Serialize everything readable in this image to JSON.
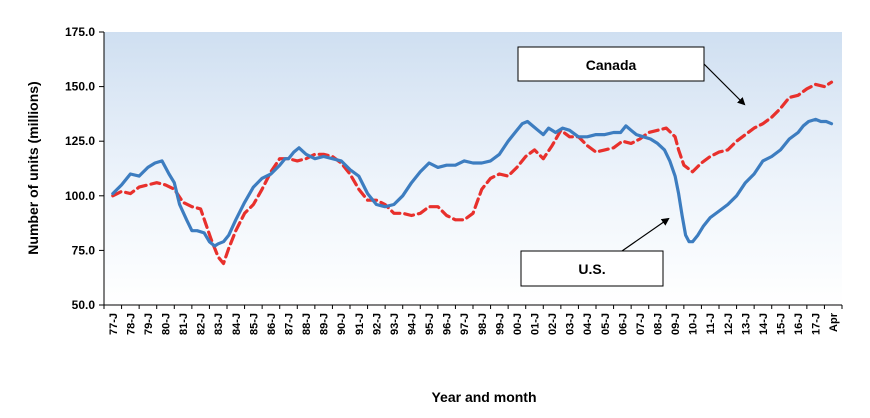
{
  "chart_data": {
    "type": "line",
    "title": "",
    "xlabel": "Year and month",
    "ylabel": "Number of units (millions)",
    "ylim": [
      50,
      175
    ],
    "yticks": [
      "50.0",
      "75.0",
      "100.0",
      "125.0",
      "150.0",
      "175.0"
    ],
    "categories": [
      "77-J",
      "78-J",
      "79-J",
      "80-J",
      "81-J",
      "82-J",
      "83-J",
      "84-J",
      "85-J",
      "86-J",
      "87-J",
      "88-J",
      "89-J",
      "90-J",
      "91-J",
      "92-J",
      "93-J",
      "94-J",
      "95-J",
      "96-J",
      "97-J",
      "98-J",
      "99-J",
      "00-J",
      "01-J",
      "02-J",
      "03-J",
      "04-J",
      "05-J",
      "06-J",
      "07-J",
      "08-J",
      "09-J",
      "10-J",
      "11-J",
      "12-J",
      "13-J",
      "14-J",
      "15-J",
      "16-J",
      "17-J",
      "Apr"
    ],
    "grid": false,
    "series": [
      {
        "name": "U.S.",
        "color": "#3d7dc0",
        "x": [
          1977.0,
          1977.5,
          1978.0,
          1978.5,
          1979.0,
          1979.4,
          1979.8,
          1980.2,
          1980.5,
          1980.8,
          1981.2,
          1981.5,
          1981.8,
          1982.2,
          1982.5,
          1982.8,
          1983.0,
          1983.3,
          1983.6,
          1984.0,
          1984.5,
          1985.0,
          1985.5,
          1986.0,
          1986.5,
          1986.8,
          1987.0,
          1987.3,
          1987.6,
          1988.0,
          1988.5,
          1989.0,
          1989.5,
          1990.0,
          1990.5,
          1991.0,
          1991.5,
          1992.0,
          1992.5,
          1993.0,
          1993.5,
          1994.0,
          1994.5,
          1995.0,
          1995.5,
          1996.0,
          1996.5,
          1997.0,
          1997.5,
          1998.0,
          1998.5,
          1999.0,
          1999.5,
          2000.0,
          2000.3,
          2000.6,
          2000.9,
          2001.2,
          2001.5,
          2001.8,
          2002.2,
          2002.6,
          2003.0,
          2003.5,
          2004.0,
          2004.5,
          2005.0,
          2005.5,
          2005.9,
          2006.2,
          2006.5,
          2006.8,
          2007.2,
          2007.6,
          2008.0,
          2008.4,
          2008.7,
          2009.0,
          2009.2,
          2009.4,
          2009.6,
          2009.8,
          2010.0,
          2010.3,
          2010.6,
          2011.0,
          2011.5,
          2012.0,
          2012.5,
          2013.0,
          2013.5,
          2014.0,
          2014.5,
          2015.0,
          2015.5,
          2016.0,
          2016.3,
          2016.6,
          2017.0,
          2017.3,
          2017.6,
          2017.9
        ],
        "values": [
          101,
          105,
          110,
          109,
          113,
          115,
          116,
          110,
          106,
          96,
          89,
          84,
          84,
          83,
          79,
          77,
          78,
          79,
          82,
          89,
          97,
          104,
          108,
          110,
          114,
          117,
          117,
          120,
          122,
          119,
          117,
          118,
          117,
          116,
          112,
          109,
          101,
          96,
          95,
          96,
          100,
          106,
          111,
          115,
          113,
          114,
          114,
          116,
          115,
          115,
          116,
          119,
          125,
          130,
          133,
          134,
          132,
          130,
          128,
          131,
          129,
          131,
          130,
          127,
          127,
          128,
          128,
          129,
          129,
          132,
          130,
          128,
          127,
          126,
          124,
          121,
          116,
          109,
          101,
          91,
          82,
          79,
          79,
          82,
          86,
          90,
          93,
          96,
          100,
          106,
          110,
          116,
          118,
          121,
          126,
          129,
          132,
          134,
          135,
          134,
          134,
          133
        ]
      },
      {
        "name": "Canada",
        "color": "#e8302c",
        "x": [
          1977.0,
          1977.5,
          1978.0,
          1978.5,
          1979.0,
          1979.5,
          1980.0,
          1980.5,
          1981.0,
          1981.5,
          1982.0,
          1982.3,
          1982.6,
          1983.0,
          1983.3,
          1983.6,
          1984.0,
          1984.5,
          1985.0,
          1985.5,
          1986.0,
          1986.5,
          1987.0,
          1987.5,
          1988.0,
          1988.5,
          1989.0,
          1989.5,
          1990.0,
          1990.5,
          1991.0,
          1991.5,
          1992.0,
          1992.5,
          1993.0,
          1993.5,
          1994.0,
          1994.5,
          1995.0,
          1995.5,
          1996.0,
          1996.5,
          1997.0,
          1997.5,
          1998.0,
          1998.5,
          1999.0,
          1999.5,
          2000.0,
          2000.5,
          2001.0,
          2001.5,
          2002.0,
          2002.5,
          2003.0,
          2003.5,
          2004.0,
          2004.5,
          2005.0,
          2005.5,
          2006.0,
          2006.5,
          2007.0,
          2007.5,
          2008.0,
          2008.5,
          2009.0,
          2009.2,
          2009.5,
          2010.0,
          2010.5,
          2011.0,
          2011.5,
          2012.0,
          2012.5,
          2013.0,
          2013.5,
          2014.0,
          2014.5,
          2015.0,
          2015.5,
          2016.0,
          2016.5,
          2017.0,
          2017.5,
          2017.9
        ],
        "values": [
          100,
          102,
          101,
          104,
          105,
          106,
          105,
          103,
          97,
          95,
          94,
          87,
          80,
          72,
          69,
          76,
          84,
          92,
          96,
          103,
          111,
          117,
          117,
          116,
          117,
          119,
          119,
          118,
          115,
          110,
          103,
          98,
          98,
          96,
          92,
          92,
          91,
          92,
          95,
          95,
          91,
          89,
          89,
          92,
          103,
          108,
          110,
          109,
          113,
          118,
          121,
          117,
          123,
          130,
          127,
          127,
          123,
          120,
          121,
          122,
          125,
          124,
          126,
          129,
          130,
          131,
          127,
          121,
          114,
          111,
          115,
          118,
          120,
          121,
          125,
          128,
          131,
          133,
          136,
          140,
          145,
          146,
          149,
          151,
          150,
          152
        ]
      }
    ],
    "annotations": [
      {
        "label": "Canada"
      },
      {
        "label": "U.S."
      }
    ]
  }
}
